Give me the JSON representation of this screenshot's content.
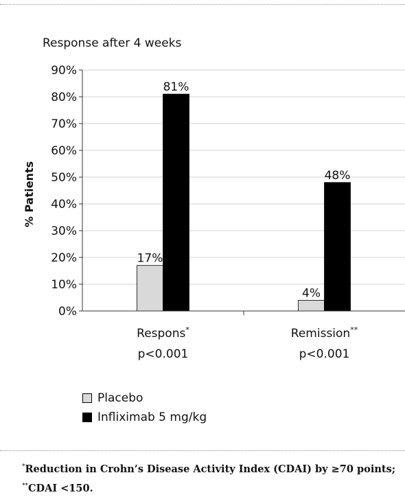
{
  "chart_data": {
    "type": "bar",
    "title": "Response after 4 weeks",
    "ylabel": "% Patients",
    "xlabel": "",
    "ylim": [
      0,
      90
    ],
    "yticks": [
      0,
      10,
      20,
      30,
      40,
      50,
      60,
      70,
      80,
      90
    ],
    "ytick_labels": [
      "0%",
      "10%",
      "20%",
      "30%",
      "40%",
      "50%",
      "60%",
      "70%",
      "80%",
      "90%"
    ],
    "grid": true,
    "legend_position": "bottom-left",
    "categories": [
      {
        "label": "Respons",
        "marker": "*",
        "sublabel": "p<0.001"
      },
      {
        "label": "Remission",
        "marker": "**",
        "sublabel": "p<0.001"
      }
    ],
    "series": [
      {
        "name": "Placebo",
        "color": "#d9d9d9",
        "values": [
          17,
          4
        ],
        "data_labels": [
          "17%",
          "4%"
        ]
      },
      {
        "name": "Infliximab 5 mg/kg",
        "color": "#000000",
        "values": [
          81,
          48
        ],
        "data_labels": [
          "81%",
          "48%"
        ]
      }
    ]
  },
  "footnote": {
    "marker1": "*",
    "line1": "Reduction in Crohn’s Disease Activity Index (CDAI) by ≥70 points;",
    "marker2": "**",
    "line2": "CDAI <150."
  }
}
